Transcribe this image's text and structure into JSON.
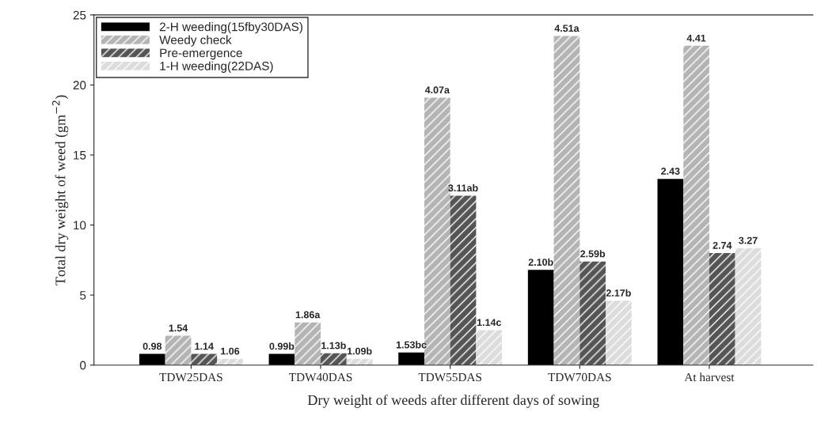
{
  "chart_data": {
    "type": "bar",
    "xlabel": "Dry weight of weeds after different days of sowing",
    "ylabel": "Total dry weight of weed (gm$^{−2}$)",
    "categories": [
      "TDW25DAS",
      "TDW40DAS",
      "TDW55DAS",
      "TDW70DAS",
      "At harvest"
    ],
    "series": [
      {
        "name": "2-H weeding(15fby30DAS)",
        "color": "#000000",
        "values": [
          0.8,
          0.8,
          0.9,
          6.8,
          13.3
        ]
      },
      {
        "name": "Weedy check",
        "color": "#b4b4b4",
        "values": [
          2.1,
          3.05,
          19.1,
          23.5,
          22.8
        ]
      },
      {
        "name": "Pre-emergence",
        "color": "#555555",
        "values": [
          0.8,
          0.85,
          12.1,
          7.4,
          8.0
        ]
      },
      {
        "name": "1-H weeding(22DAS)",
        "color": "#dcdcdc",
        "values": [
          0.45,
          0.45,
          2.5,
          4.6,
          8.35
        ]
      }
    ],
    "annotations": [
      "0.98",
      "0.99b",
      "1.53bc",
      "2.10b",
      "2.43",
      "1.54",
      "1.86a",
      "4.07a",
      "4.51a",
      "4.41",
      "1.14",
      "1.13b",
      "3.11ab",
      "2.59b",
      "2.74",
      "1.06",
      "1.09b",
      "1.14c",
      "2.17b",
      "3.27"
    ],
    "ylim": [
      0,
      25
    ],
    "yticks": [
      0,
      5,
      10,
      15,
      20,
      25
    ],
    "grid": false,
    "legend": "top left"
  }
}
